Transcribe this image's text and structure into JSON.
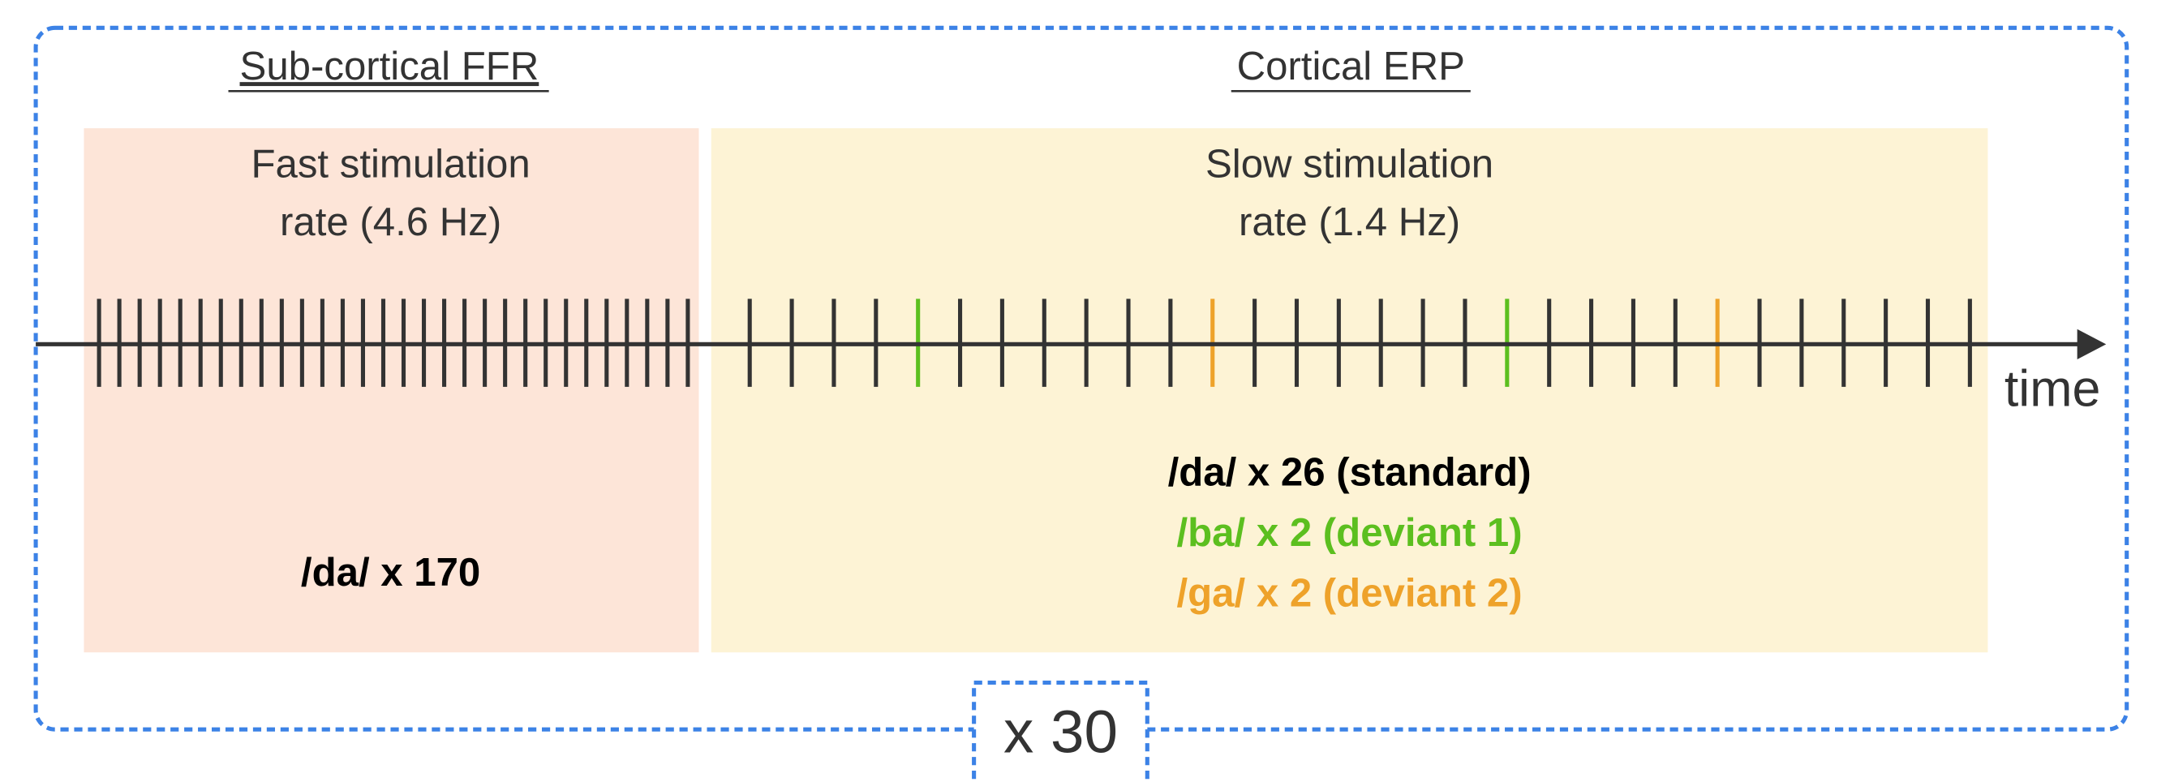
{
  "left": {
    "title": "Sub-cortical FFR",
    "subtitle": [
      "Fast stimulation",
      "rate (4.6 Hz)"
    ],
    "label": "/da/ x 170"
  },
  "right": {
    "title": "Cortical ERP",
    "subtitle": [
      "Slow stimulation",
      "rate (1.4 Hz)"
    ],
    "labels": [
      "/da/ x 26 (standard)",
      "/ba/ x 2 (deviant 1)",
      "/ga/ x 2 (deviant 2)"
    ]
  },
  "axis_label": "time",
  "repeat": "x 30"
}
